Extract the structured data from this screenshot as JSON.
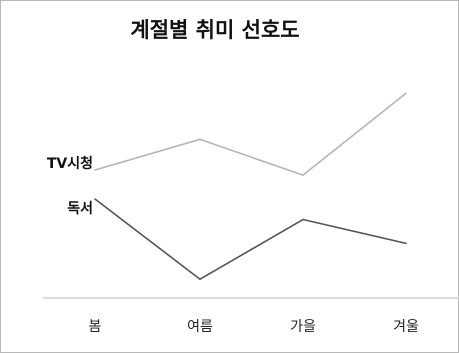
{
  "chart_data": {
    "type": "line",
    "title": "계절별 취미 선호도",
    "categories": [
      "봄",
      "여름",
      "가을",
      "겨울"
    ],
    "series": [
      {
        "name": "TV시청",
        "values": [
          7.5,
          9.3,
          7.2,
          12.0
        ],
        "color": "#b5b5b5"
      },
      {
        "name": "독서",
        "values": [
          5.8,
          1.1,
          4.6,
          3.2
        ],
        "color": "#545454"
      }
    ],
    "ylim": [
      0,
      16
    ],
    "legend": "left-inline",
    "grid": false
  }
}
